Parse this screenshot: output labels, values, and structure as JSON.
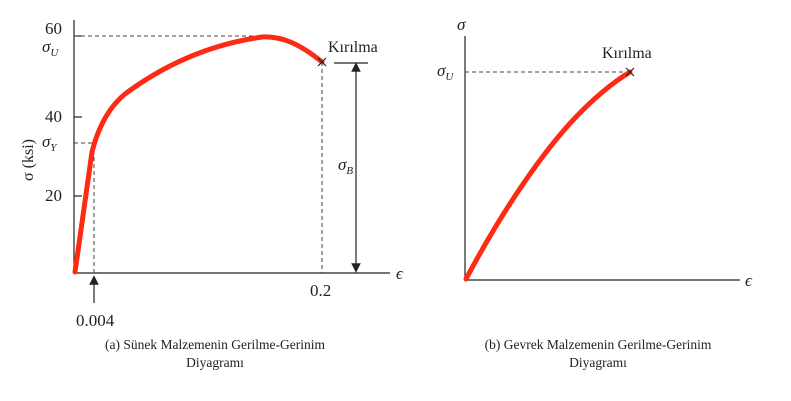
{
  "ductile": {
    "y_axis_label": "σ (ksi)",
    "y_ticks": [
      "60",
      "40",
      "20"
    ],
    "sigma_u": {
      "main": "σ",
      "sub": "U"
    },
    "sigma_y": {
      "main": "σ",
      "sub": "Y"
    },
    "sigma_b": {
      "main": "σ",
      "sub": "B"
    },
    "break_label": "Kırılma",
    "x_axis_symbol": "ϵ",
    "x_tick_02": "0.2",
    "x_tick_0004": "0.004",
    "caption_line1": "(a) Sünek Malzemenin Gerilme-Gerinim",
    "caption_line2": "Diyagramı"
  },
  "brittle": {
    "y_axis_symbol": "σ",
    "sigma_u": {
      "main": "σ",
      "sub": "U"
    },
    "break_label": "Kırılma",
    "x_axis_symbol": "ϵ",
    "caption_line1": "(b) Gevrek Malzemenin Gerilme-Gerinim",
    "caption_line2": "Diyagramı"
  },
  "colors": {
    "curve": "#ff2a14",
    "axis": "#222222"
  }
}
